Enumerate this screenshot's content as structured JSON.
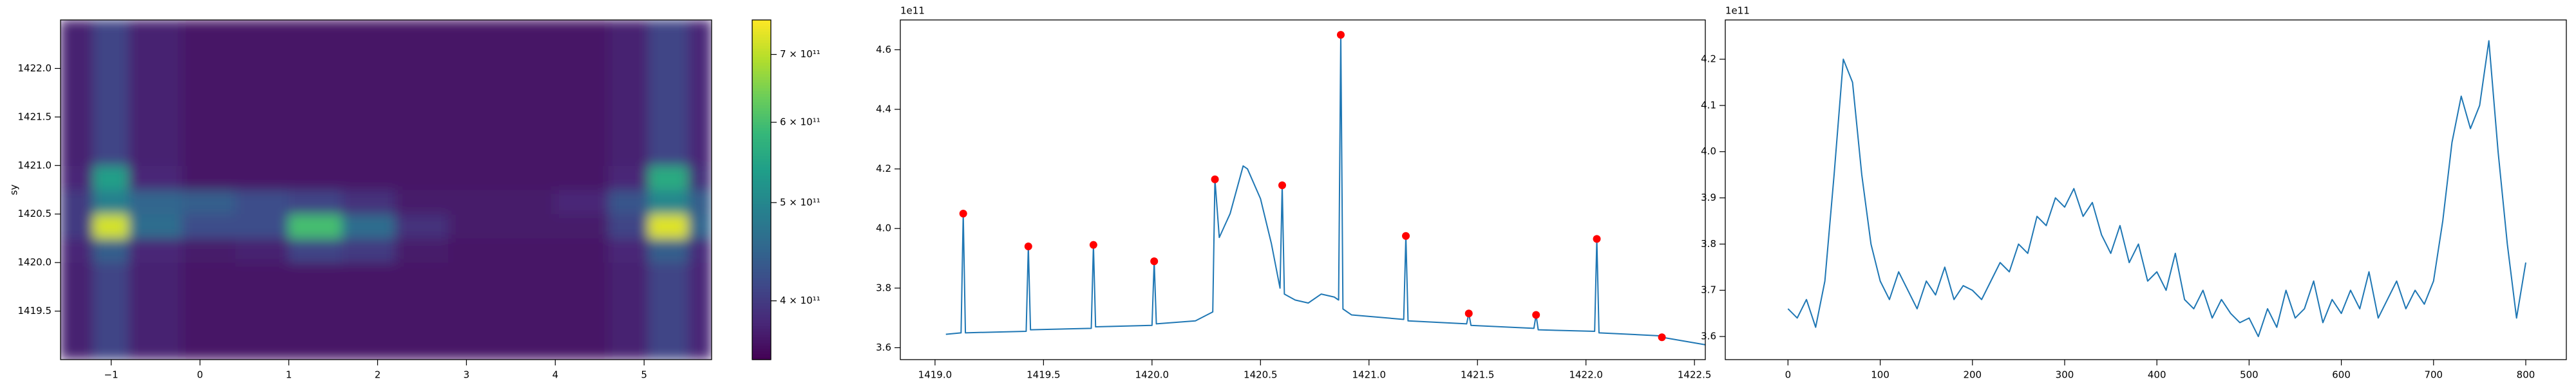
{
  "chart_data": [
    {
      "type": "heatmap",
      "ylabel": "sy",
      "colormap": "viridis",
      "color_scale": "log",
      "xlim": [
        -1.57,
        5.76
      ],
      "ylim": [
        1419.0,
        1422.5
      ],
      "xticks": [
        {
          "value": -1,
          "label": "−1"
        },
        0,
        1,
        2,
        3,
        4,
        5
      ],
      "yticks": [
        1419.5,
        {
          "value": 1420.0,
          "label": "1420.0"
        },
        1420.5,
        {
          "value": 1421.0,
          "label": "1421.0"
        },
        1421.5,
        {
          "value": 1422.0,
          "label": "1422.0"
        }
      ],
      "x_edges": [
        -1.57,
        -1.2,
        -0.8,
        -0.2,
        0.4,
        1.0,
        1.6,
        2.2,
        2.8,
        3.4,
        4.0,
        4.6,
        5.05,
        5.5,
        5.76
      ],
      "y_edges": [
        1419.0,
        1419.25,
        1419.5,
        1419.75,
        1420.0,
        1420.25,
        1420.5,
        1420.75,
        1421.0,
        1421.25,
        1421.5,
        1421.75,
        1422.0,
        1422.25,
        1422.5
      ],
      "values": [
        [
          375000000000.0,
          410000000000.0,
          375000000000.0,
          365000000000.0,
          365000000000.0,
          365000000000.0,
          365000000000.0,
          365000000000.0,
          365000000000.0,
          365000000000.0,
          365000000000.0,
          375000000000.0,
          410000000000.0,
          380000000000.0
        ],
        [
          375000000000.0,
          410000000000.0,
          375000000000.0,
          365000000000.0,
          365000000000.0,
          365000000000.0,
          365000000000.0,
          365000000000.0,
          365000000000.0,
          365000000000.0,
          365000000000.0,
          375000000000.0,
          410000000000.0,
          380000000000.0
        ],
        [
          375000000000.0,
          410000000000.0,
          375000000000.0,
          365000000000.0,
          365000000000.0,
          365000000000.0,
          365000000000.0,
          365000000000.0,
          365000000000.0,
          365000000000.0,
          365000000000.0,
          375000000000.0,
          410000000000.0,
          380000000000.0
        ],
        [
          375000000000.0,
          410000000000.0,
          375000000000.0,
          365000000000.0,
          365000000000.0,
          365000000000.0,
          365000000000.0,
          365000000000.0,
          365000000000.0,
          365000000000.0,
          365000000000.0,
          375000000000.0,
          410000000000.0,
          380000000000.0
        ],
        [
          380000000000.0,
          440000000000.0,
          380000000000.0,
          370000000000.0,
          375000000000.0,
          410000000000.0,
          400000000000.0,
          370000000000.0,
          365000000000.0,
          365000000000.0,
          365000000000.0,
          380000000000.0,
          440000000000.0,
          385000000000.0
        ],
        [
          400000000000.0,
          720000000000.0,
          460000000000.0,
          420000000000.0,
          420000000000.0,
          600000000000.0,
          460000000000.0,
          390000000000.0,
          370000000000.0,
          370000000000.0,
          370000000000.0,
          410000000000.0,
          730000000000.0,
          450000000000.0
        ],
        [
          400000000000.0,
          490000000000.0,
          450000000000.0,
          440000000000.0,
          420000000000.0,
          410000000000.0,
          390000000000.0,
          370000000000.0,
          370000000000.0,
          370000000000.0,
          380000000000.0,
          430000000000.0,
          500000000000.0,
          440000000000.0
        ],
        [
          380000000000.0,
          540000000000.0,
          380000000000.0,
          365000000000.0,
          365000000000.0,
          365000000000.0,
          365000000000.0,
          365000000000.0,
          365000000000.0,
          365000000000.0,
          365000000000.0,
          380000000000.0,
          560000000000.0,
          390000000000.0
        ],
        [
          375000000000.0,
          410000000000.0,
          375000000000.0,
          365000000000.0,
          365000000000.0,
          365000000000.0,
          365000000000.0,
          365000000000.0,
          365000000000.0,
          365000000000.0,
          365000000000.0,
          375000000000.0,
          410000000000.0,
          380000000000.0
        ],
        [
          375000000000.0,
          410000000000.0,
          375000000000.0,
          365000000000.0,
          365000000000.0,
          365000000000.0,
          365000000000.0,
          365000000000.0,
          365000000000.0,
          365000000000.0,
          365000000000.0,
          375000000000.0,
          410000000000.0,
          380000000000.0
        ],
        [
          375000000000.0,
          410000000000.0,
          375000000000.0,
          365000000000.0,
          365000000000.0,
          365000000000.0,
          365000000000.0,
          365000000000.0,
          365000000000.0,
          365000000000.0,
          365000000000.0,
          375000000000.0,
          410000000000.0,
          380000000000.0
        ],
        [
          375000000000.0,
          410000000000.0,
          375000000000.0,
          365000000000.0,
          365000000000.0,
          365000000000.0,
          365000000000.0,
          365000000000.0,
          365000000000.0,
          365000000000.0,
          365000000000.0,
          375000000000.0,
          410000000000.0,
          380000000000.0
        ],
        [
          375000000000.0,
          410000000000.0,
          375000000000.0,
          365000000000.0,
          365000000000.0,
          365000000000.0,
          365000000000.0,
          365000000000.0,
          365000000000.0,
          365000000000.0,
          365000000000.0,
          375000000000.0,
          410000000000.0,
          380000000000.0
        ],
        [
          375000000000.0,
          410000000000.0,
          375000000000.0,
          365000000000.0,
          365000000000.0,
          365000000000.0,
          365000000000.0,
          365000000000.0,
          365000000000.0,
          365000000000.0,
          365000000000.0,
          375000000000.0,
          410000000000.0,
          380000000000.0
        ]
      ],
      "clim": [
        350000000000.0,
        757000000000.0
      ],
      "colorbar_ticks": [
        {
          "value": 400000000000.0,
          "label": "4 × 10¹¹"
        },
        {
          "value": 500000000000.0,
          "label": "5 × 10¹¹"
        },
        {
          "value": 600000000000.0,
          "label": "6 × 10¹¹"
        },
        {
          "value": 700000000000.0,
          "label": "7 × 10¹¹"
        }
      ]
    },
    {
      "type": "line",
      "offset_label": "1e11",
      "xlim": [
        1418.84,
        1422.55
      ],
      "ylim": [
        3.56,
        4.7
      ],
      "xticks": [
        {
          "value": 1419.0,
          "label": "1419.0"
        },
        1419.5,
        {
          "value": 1420.0,
          "label": "1420.0"
        },
        1420.5,
        {
          "value": 1421.0,
          "label": "1421.0"
        },
        1421.5,
        {
          "value": 1422.0,
          "label": "1422.0"
        },
        1422.5
      ],
      "yticks": [
        3.6,
        3.8,
        {
          "value": 4.0,
          "label": "4.0"
        },
        4.2,
        4.4,
        4.6
      ],
      "series": [
        {
          "color": "#1f77b4",
          "x": [
            1419.05,
            1419.12,
            1419.13,
            1419.14,
            1419.42,
            1419.43,
            1419.44,
            1419.72,
            1419.73,
            1419.74,
            1420.0,
            1420.01,
            1420.02,
            1420.2,
            1420.28,
            1420.29,
            1420.31,
            1420.36,
            1420.42,
            1420.44,
            1420.5,
            1420.55,
            1420.59,
            1420.6,
            1420.61,
            1420.66,
            1420.72,
            1420.78,
            1420.84,
            1420.86,
            1420.87,
            1420.88,
            1420.92,
            1421.16,
            1421.17,
            1421.18,
            1421.45,
            1421.46,
            1421.47,
            1421.76,
            1421.77,
            1421.78,
            1422.04,
            1422.05,
            1422.06,
            1422.34,
            1422.35,
            1422.55
          ],
          "values": [
            3.645,
            3.65,
            4.05,
            3.65,
            3.655,
            3.94,
            3.66,
            3.665,
            3.945,
            3.67,
            3.675,
            3.89,
            3.68,
            3.69,
            3.72,
            4.165,
            3.97,
            4.05,
            4.21,
            4.2,
            4.1,
            3.95,
            3.8,
            4.145,
            3.78,
            3.76,
            3.75,
            3.78,
            3.77,
            3.76,
            4.65,
            3.73,
            3.71,
            3.695,
            3.975,
            3.69,
            3.68,
            3.715,
            3.675,
            3.665,
            3.71,
            3.66,
            3.655,
            3.965,
            3.65,
            3.64,
            3.635,
            3.61
          ]
        },
        {
          "color": "#ff0000",
          "marker": "o",
          "line": false,
          "x": [
            1419.13,
            1419.43,
            1419.73,
            1420.01,
            1420.29,
            1420.6,
            1420.87,
            1421.17,
            1421.46,
            1421.77,
            1422.05,
            1422.35
          ],
          "values": [
            4.05,
            3.94,
            3.945,
            3.89,
            4.165,
            4.145,
            4.65,
            3.975,
            3.715,
            3.71,
            3.965,
            3.635
          ]
        }
      ]
    },
    {
      "type": "line",
      "offset_label": "1e11",
      "xlim": [
        -68,
        844
      ],
      "ylim": [
        3.55,
        4.285
      ],
      "xticks": [
        0,
        100,
        200,
        300,
        400,
        500,
        600,
        700,
        800
      ],
      "yticks": [
        3.6,
        3.7,
        3.8,
        3.9,
        {
          "value": 4.0,
          "label": "4.0"
        },
        4.1,
        4.2
      ],
      "series": [
        {
          "color": "#1f77b4",
          "x": [
            0,
            10,
            20,
            30,
            40,
            50,
            60,
            70,
            80,
            90,
            100,
            110,
            120,
            130,
            140,
            150,
            160,
            170,
            180,
            190,
            200,
            210,
            220,
            230,
            240,
            250,
            260,
            270,
            280,
            290,
            300,
            310,
            320,
            330,
            340,
            350,
            360,
            370,
            380,
            390,
            400,
            410,
            420,
            430,
            440,
            450,
            460,
            470,
            480,
            490,
            500,
            510,
            520,
            530,
            540,
            550,
            560,
            570,
            580,
            590,
            600,
            610,
            620,
            630,
            640,
            650,
            660,
            670,
            680,
            690,
            700,
            710,
            720,
            730,
            740,
            750,
            760,
            770,
            780,
            790,
            800
          ],
          "values": [
            3.66,
            3.64,
            3.68,
            3.62,
            3.72,
            3.95,
            4.2,
            4.15,
            3.95,
            3.8,
            3.72,
            3.68,
            3.74,
            3.7,
            3.66,
            3.72,
            3.69,
            3.75,
            3.68,
            3.71,
            3.7,
            3.68,
            3.72,
            3.76,
            3.74,
            3.8,
            3.78,
            3.86,
            3.84,
            3.9,
            3.88,
            3.92,
            3.86,
            3.89,
            3.82,
            3.78,
            3.84,
            3.76,
            3.8,
            3.72,
            3.74,
            3.7,
            3.78,
            3.68,
            3.66,
            3.7,
            3.64,
            3.68,
            3.65,
            3.63,
            3.64,
            3.6,
            3.66,
            3.62,
            3.7,
            3.64,
            3.66,
            3.72,
            3.63,
            3.68,
            3.65,
            3.7,
            3.66,
            3.74,
            3.64,
            3.68,
            3.72,
            3.66,
            3.7,
            3.67,
            3.72,
            3.85,
            4.02,
            4.12,
            4.05,
            4.1,
            4.24,
            4.0,
            3.8,
            3.64,
            3.76
          ]
        }
      ]
    }
  ]
}
